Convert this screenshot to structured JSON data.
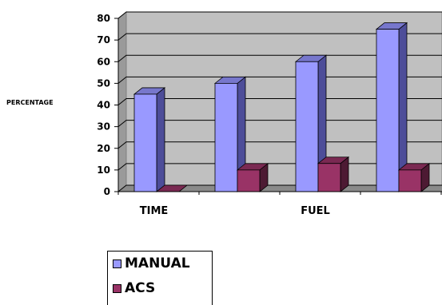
{
  "chart_data": {
    "type": "bar",
    "subtype": "3d-clustered-column",
    "ylabel": "PERCENTAGE",
    "ylim": [
      0,
      80
    ],
    "yticks": [
      "0",
      "10",
      "20",
      "30",
      "40",
      "50",
      "60",
      "70",
      "80"
    ],
    "category_labels": [
      "TIME",
      "",
      "FUEL",
      ""
    ],
    "series": [
      {
        "name": "MANUAL",
        "color": "#9999ff",
        "side": "#4d4d99",
        "top": "#7777cc",
        "values": [
          45,
          50,
          60,
          75
        ]
      },
      {
        "name": "ACS",
        "color": "#993366",
        "side": "#4d1a33",
        "top": "#7a2952",
        "values": [
          0,
          10,
          13,
          10
        ]
      }
    ],
    "grid": true,
    "legend": "bottom-left"
  }
}
